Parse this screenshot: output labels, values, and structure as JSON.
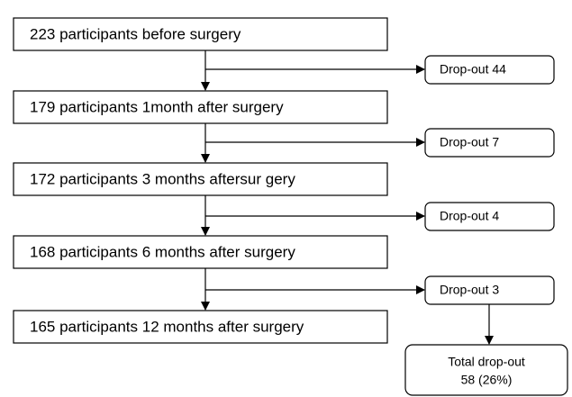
{
  "stages": [
    {
      "label": "223 participants before surgery"
    },
    {
      "label": "179 participants 1month after surgery"
    },
    {
      "label": "172 participants 3 months aftersur gery"
    },
    {
      "label": "168 participants 6 months after surgery"
    },
    {
      "label": "165 participants 12 months after surgery"
    }
  ],
  "dropouts": [
    {
      "label": "Drop-out 44"
    },
    {
      "label": "Drop-out 7"
    },
    {
      "label": "Drop-out 4"
    },
    {
      "label": "Drop-out 3"
    }
  ],
  "total": {
    "lines": [
      "Total drop-out",
      "58 (26%)"
    ]
  }
}
